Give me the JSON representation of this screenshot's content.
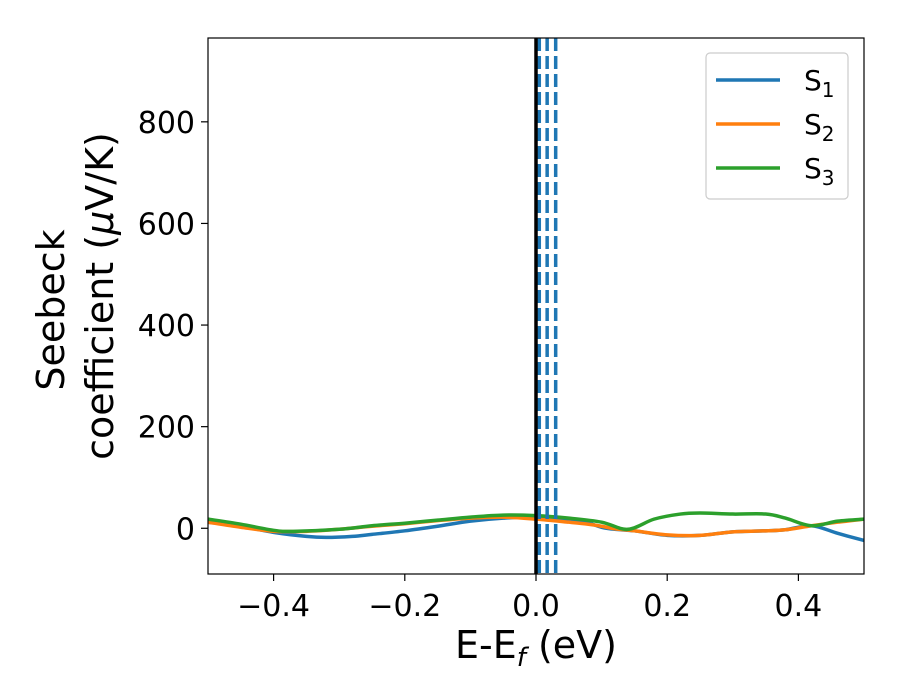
{
  "chart_data": {
    "type": "line",
    "xlabel": {
      "base": "E-E",
      "sub": "f",
      "suffix": " (eV)"
    },
    "ylabel": {
      "line1": "Seebeck",
      "line2_prefix": "coefficient  (",
      "mu": "μ",
      "line2_suffix": "V/K)"
    },
    "xlim": [
      -0.5,
      0.5
    ],
    "ylim": [
      -90,
      965
    ],
    "xticks": [
      -0.4,
      -0.2,
      0.0,
      0.2,
      0.4
    ],
    "xtick_labels": [
      "−0.4",
      "−0.2",
      "0.0",
      "0.2",
      "0.4"
    ],
    "yticks": [
      0,
      200,
      400,
      600,
      800
    ],
    "ytick_labels": [
      "0",
      "200",
      "400",
      "600",
      "800"
    ],
    "grid": false,
    "legend_position": "top-right",
    "fermi_line": {
      "x": 0.0,
      "color": "#000000"
    },
    "dashed_lines": {
      "x": [
        0.005,
        0.017,
        0.03
      ],
      "color": "#1f77b4"
    },
    "series": [
      {
        "name": "S",
        "subscript": "1",
        "color": "#1f77b4",
        "x": [
          -0.5,
          -0.45,
          -0.4,
          -0.35,
          -0.32,
          -0.28,
          -0.25,
          -0.2,
          -0.15,
          -0.1,
          -0.05,
          0.0,
          0.05,
          0.08,
          0.1,
          0.12,
          0.15,
          0.2,
          0.25,
          0.3,
          0.35,
          0.38,
          0.42,
          0.46,
          0.5
        ],
        "y": [
          12,
          4,
          -8,
          -16,
          -18,
          -16,
          -12,
          -5,
          4,
          14,
          20,
          22,
          15,
          10,
          2,
          -2,
          -5,
          -14,
          -14,
          -7,
          -5,
          -3,
          5,
          -10,
          -24
        ]
      },
      {
        "name": "S",
        "subscript": "2",
        "color": "#ff7f0e",
        "x": [
          -0.5,
          -0.45,
          -0.4,
          -0.35,
          -0.3,
          -0.25,
          -0.2,
          -0.15,
          -0.1,
          -0.05,
          0.0,
          0.05,
          0.08,
          0.1,
          0.12,
          0.15,
          0.2,
          0.25,
          0.3,
          0.35,
          0.38,
          0.42,
          0.46,
          0.5
        ],
        "y": [
          12,
          2,
          -6,
          -6,
          -2,
          4,
          9,
          15,
          20,
          22,
          18,
          12,
          8,
          4,
          -1,
          -5,
          -13,
          -14,
          -7,
          -5,
          -3,
          5,
          12,
          18
        ]
      },
      {
        "name": "S",
        "subscript": "3",
        "color": "#2ca02c",
        "x": [
          -0.5,
          -0.45,
          -0.4,
          -0.37,
          -0.3,
          -0.25,
          -0.2,
          -0.15,
          -0.1,
          -0.05,
          0.0,
          0.05,
          0.1,
          0.14,
          0.18,
          0.22,
          0.25,
          0.3,
          0.35,
          0.38,
          0.42,
          0.46,
          0.5
        ],
        "y": [
          18,
          8,
          -4,
          -6,
          -2,
          5,
          10,
          16,
          22,
          26,
          25,
          20,
          12,
          -2,
          18,
          28,
          30,
          28,
          28,
          20,
          5,
          14,
          18
        ]
      }
    ]
  }
}
